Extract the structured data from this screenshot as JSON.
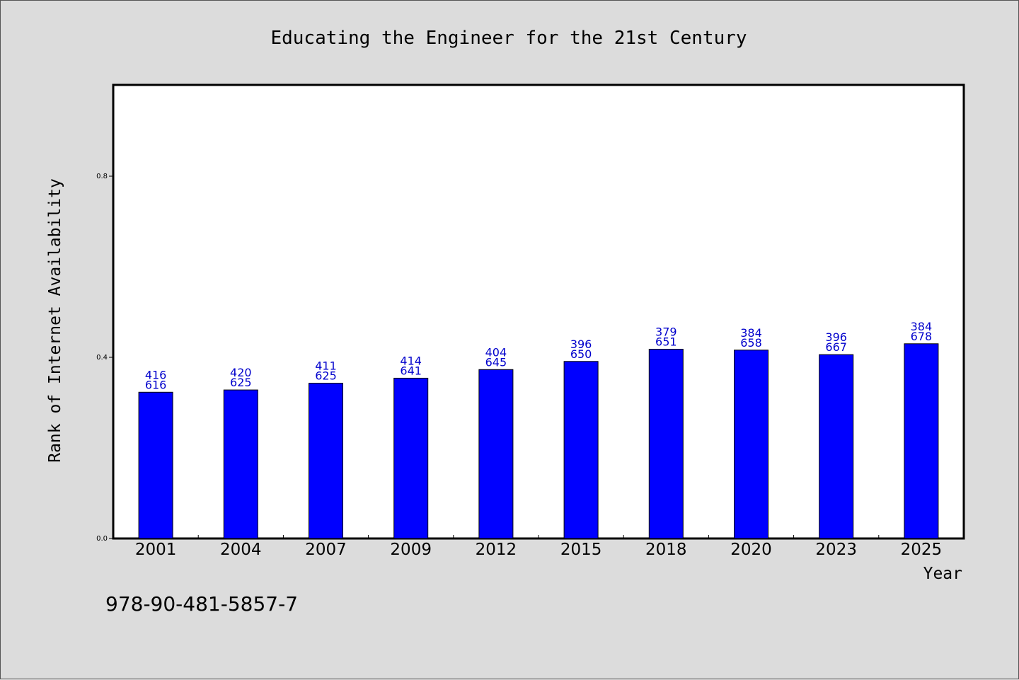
{
  "chart_data": {
    "type": "bar",
    "title": "Educating the Engineer for the 21st Century",
    "xlabel": "Year",
    "ylabel": "Rank of Internet Availability",
    "categories": [
      "2001",
      "2004",
      "2007",
      "2009",
      "2012",
      "2015",
      "2018",
      "2020",
      "2023",
      "2025"
    ],
    "values": [
      0.323,
      0.328,
      0.343,
      0.354,
      0.373,
      0.391,
      0.418,
      0.416,
      0.406,
      0.43
    ],
    "data_labels_top": [
      "416",
      "420",
      "411",
      "414",
      "404",
      "396",
      "379",
      "384",
      "396",
      "384"
    ],
    "data_labels_bottom": [
      "616",
      "625",
      "625",
      "641",
      "645",
      "650",
      "651",
      "658",
      "667",
      "678"
    ],
    "yticks": [
      "0.0",
      "0.4",
      "0.8"
    ],
    "ylim": [
      0,
      1.0
    ],
    "grid": false,
    "legend": "none",
    "bar_color": "#0000ff",
    "label_color": "#0000cc"
  },
  "footer_text": "978-90-481-5857-7"
}
